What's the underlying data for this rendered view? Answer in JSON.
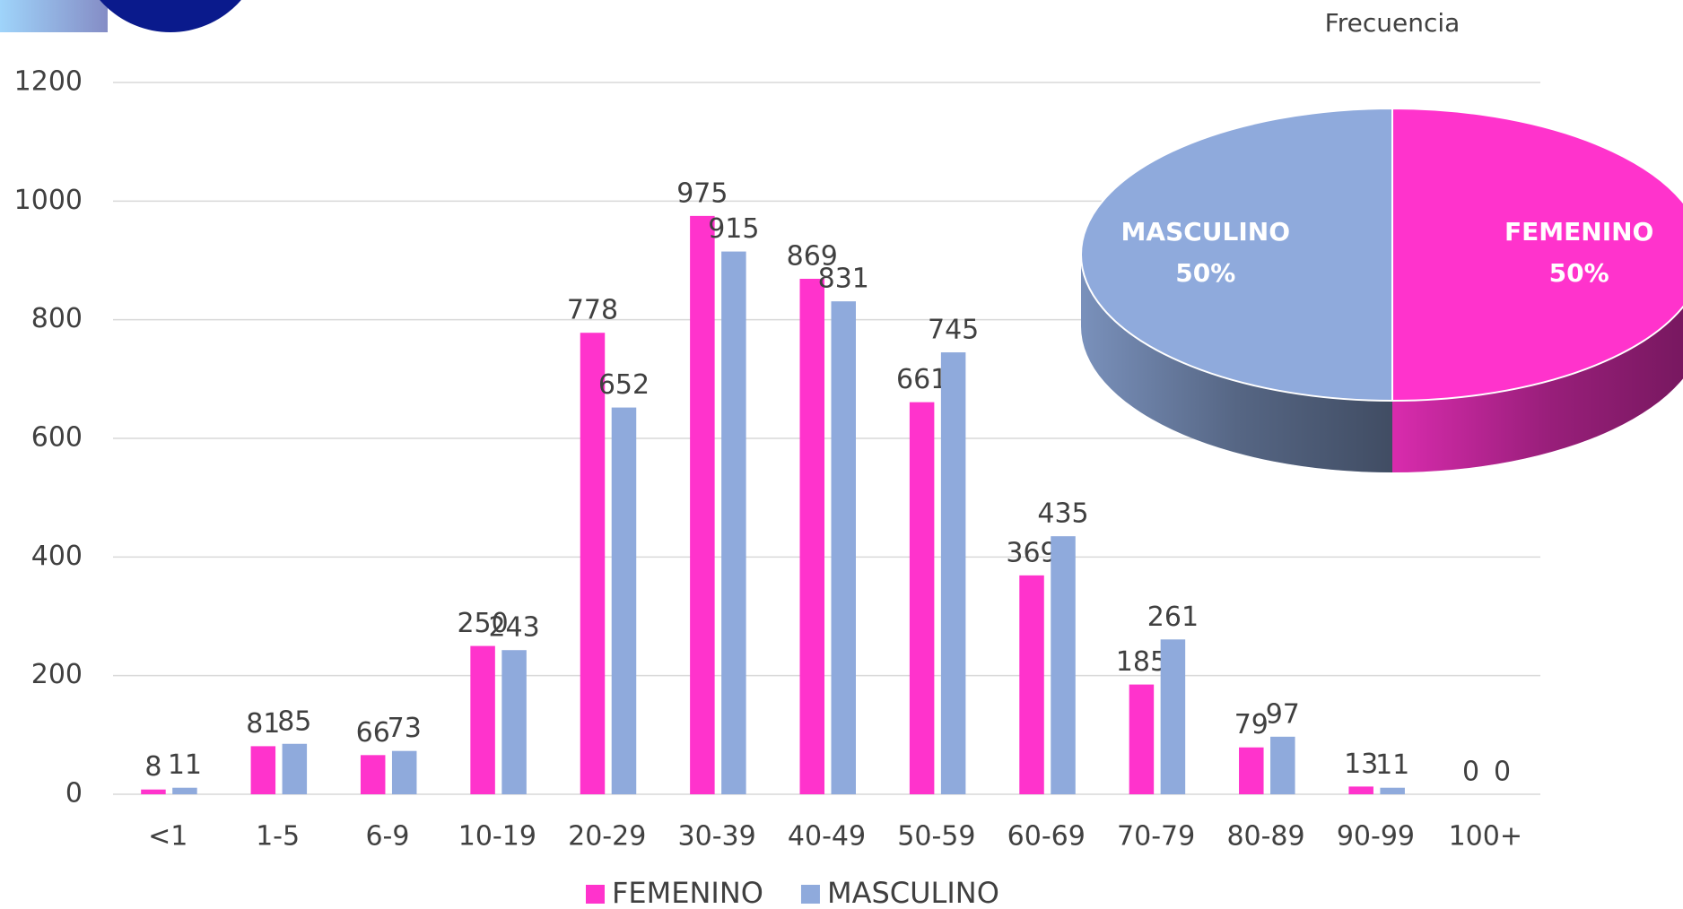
{
  "chart_data": [
    {
      "type": "bar",
      "categories": [
        "<1",
        "1-5",
        "6-9",
        "10-19",
        "20-29",
        "30-39",
        "40-49",
        "50-59",
        "60-69",
        "70-79",
        "80-89",
        "90-99",
        "100+"
      ],
      "series": [
        {
          "name": "FEMENINO",
          "color": "#ff33cc",
          "values": [
            8,
            81,
            66,
            250,
            778,
            975,
            869,
            661,
            369,
            185,
            79,
            13,
            0
          ]
        },
        {
          "name": "MASCULINO",
          "color": "#8faadc",
          "values": [
            11,
            85,
            73,
            243,
            652,
            915,
            831,
            745,
            435,
            261,
            97,
            11,
            0
          ]
        }
      ],
      "ylim": [
        0,
        1200
      ],
      "yticks": [
        0,
        200,
        400,
        600,
        800,
        1000,
        1200
      ],
      "grid": true,
      "legend": "bottom"
    },
    {
      "type": "pie",
      "title": "Frecuencia",
      "categories": [
        "FEMENINO",
        "MASCULINO"
      ],
      "values": [
        50,
        50
      ],
      "value_labels": [
        "50%",
        "50%"
      ],
      "colors": [
        "#ff33cc",
        "#8faadc"
      ]
    }
  ]
}
